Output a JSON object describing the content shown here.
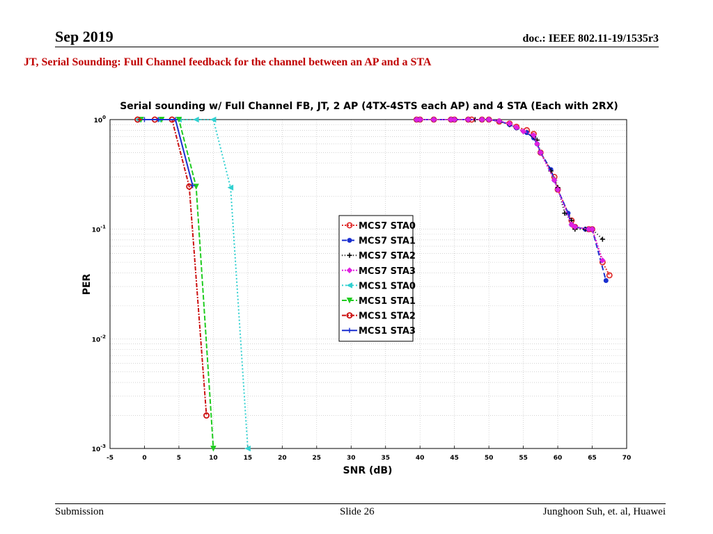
{
  "header": {
    "date": "Sep 2019",
    "doc": "doc.: IEEE 802.11-19/1535r3"
  },
  "slide_title": "JT, Serial Sounding: Full Channel feedback for the channel  between an AP and a STA",
  "footer": {
    "left": "Submission",
    "center": "Slide 26",
    "right": "Junghoon Suh, et. al, Huawei"
  },
  "chart_data": {
    "type": "line",
    "title": "Serial sounding w/ Full Channel FB, JT, 2 AP (4TX-4STS each AP) and 4 STA (Each with 2RX)",
    "xlabel": "SNR (dB)",
    "ylabel": "PER",
    "xlim": [
      -5,
      70
    ],
    "ylim": [
      0.001,
      1
    ],
    "yscale": "log",
    "grid": true,
    "legend_position": "center",
    "x_ticks": [
      "-5",
      "0",
      "5",
      "10",
      "15",
      "20",
      "25",
      "30",
      "35",
      "40",
      "45",
      "50",
      "55",
      "60",
      "65",
      "70"
    ],
    "y_ticks": [
      {
        "value": 1,
        "base": "10",
        "exp": "0"
      },
      {
        "value": 0.1,
        "base": "10",
        "exp": "-1"
      },
      {
        "value": 0.01,
        "base": "10",
        "exp": "-2"
      },
      {
        "value": 0.001,
        "base": "10",
        "exp": "-3"
      }
    ],
    "series": [
      {
        "name": "MCS7 STA0",
        "color": "#e03030",
        "dash": "2,2",
        "marker": "circle-open",
        "x": [
          39.5,
          40,
          42,
          44.5,
          45,
          47,
          47.5,
          49,
          50,
          51.5,
          53,
          54,
          55.5,
          56.5,
          57.5,
          59.5,
          60,
          62,
          62.5,
          64.5,
          65,
          66.5,
          67.5
        ],
        "y": [
          1,
          1,
          1,
          1,
          1,
          1,
          1,
          1,
          1,
          0.96,
          0.92,
          0.86,
          0.8,
          0.74,
          0.5,
          0.3,
          0.23,
          0.12,
          0.105,
          0.1,
          0.1,
          0.05,
          0.038
        ]
      },
      {
        "name": "MCS7 STA1",
        "color": "#1a2fd0",
        "dash": "7,4",
        "marker": "circle-filled",
        "x": [
          39.5,
          40,
          42,
          44.5,
          45,
          47,
          49,
          50,
          51.5,
          53,
          54,
          55.5,
          56.5,
          57,
          57.5,
          59,
          59.5,
          60,
          61.5,
          62,
          62.5,
          64,
          65,
          67
        ],
        "y": [
          1,
          1,
          1,
          1,
          1,
          1,
          1,
          1,
          0.97,
          0.9,
          0.84,
          0.76,
          0.68,
          0.6,
          0.5,
          0.35,
          0.28,
          0.23,
          0.14,
          0.11,
          0.105,
          0.1,
          0.1,
          0.034
        ]
      },
      {
        "name": "MCS7 STA2",
        "color": "#000000",
        "dash": "1,3",
        "marker": "plus",
        "x": [
          39.5,
          40,
          42,
          44.5,
          45,
          47,
          48,
          49,
          50,
          51.5,
          53,
          54,
          55,
          56.5,
          57,
          57.5,
          59,
          60,
          61,
          62,
          62.5,
          64,
          65,
          66.5
        ],
        "y": [
          1,
          1,
          1,
          1,
          1,
          1,
          1,
          1,
          1,
          0.97,
          0.9,
          0.84,
          0.78,
          0.7,
          0.65,
          0.5,
          0.34,
          0.24,
          0.14,
          0.12,
          0.1,
          0.1,
          0.1,
          0.081
        ]
      },
      {
        "name": "MCS7 STA3",
        "color": "#e020e0",
        "dash": "2,2",
        "marker": "diamond-filled",
        "x": [
          39.5,
          40,
          42,
          44.5,
          45,
          47,
          49,
          50,
          51.5,
          53,
          54,
          55,
          56.5,
          57,
          57.5,
          59.5,
          60,
          62,
          62.5,
          64.5,
          65,
          66.5
        ],
        "y": [
          1,
          1,
          1,
          1,
          1,
          1,
          1,
          1,
          0.97,
          0.92,
          0.85,
          0.78,
          0.72,
          0.6,
          0.5,
          0.28,
          0.23,
          0.11,
          0.105,
          0.1,
          0.1,
          0.052
        ]
      },
      {
        "name": "MCS1 STA0",
        "color": "#30d0d0",
        "dash": "2,3",
        "marker": "tri-left",
        "x": [
          -1,
          2,
          5,
          7.5,
          10,
          12.5,
          15
        ],
        "y": [
          1,
          1,
          1,
          1,
          1,
          0.24,
          0.001
        ]
      },
      {
        "name": "MCS1 STA1",
        "color": "#20cc20",
        "dash": "7,3",
        "marker": "tri-down",
        "x": [
          -0.5,
          2.5,
          5,
          7.5,
          10
        ],
        "y": [
          1,
          1,
          1,
          0.245,
          0.001
        ]
      },
      {
        "name": "MCS1 STA2",
        "color": "#cc1010",
        "dash": "6,2,2,2",
        "marker": "circle-open",
        "x": [
          -1,
          1.5,
          4,
          6.5,
          9
        ],
        "y": [
          1,
          1,
          1,
          0.245,
          0.002
        ]
      },
      {
        "name": "MCS1 STA3",
        "color": "#1a2fd0",
        "dash": "",
        "marker": "plus",
        "x": [
          0,
          2,
          4.5,
          7
        ],
        "y": [
          1,
          1,
          1,
          0.25
        ]
      }
    ]
  }
}
